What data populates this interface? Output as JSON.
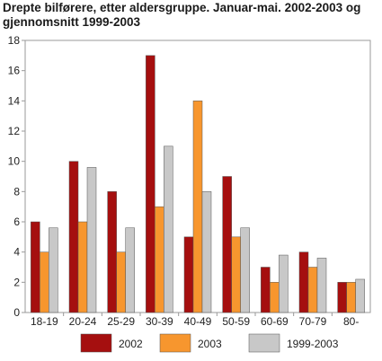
{
  "chart_data": {
    "type": "bar",
    "title": "Drepte bilførere, etter aldersgruppe. Januar-mai. 2002-2003 og gjennomsnitt 1999-2003",
    "categories": [
      "18-19",
      "20-24",
      "25-29",
      "30-39",
      "40-49",
      "50-59",
      "60-69",
      "70-79",
      "80-"
    ],
    "series": [
      {
        "name": "2002",
        "color": "#a50f0f",
        "values": [
          6,
          10,
          8,
          17,
          5,
          9,
          3,
          4,
          2
        ]
      },
      {
        "name": "2003",
        "color": "#f7962e",
        "values": [
          4,
          6,
          4,
          7,
          14,
          5,
          2,
          3,
          2
        ]
      },
      {
        "name": "1999-2003",
        "color": "#c8c8c8",
        "values": [
          5.6,
          9.6,
          5.6,
          11,
          8,
          5.6,
          3.8,
          3.6,
          2.2
        ]
      }
    ],
    "yticks": [
      0,
      2,
      4,
      6,
      8,
      10,
      12,
      14,
      16,
      18
    ],
    "ylim": [
      0,
      18
    ],
    "grid": false,
    "legend_position": "bottom"
  }
}
